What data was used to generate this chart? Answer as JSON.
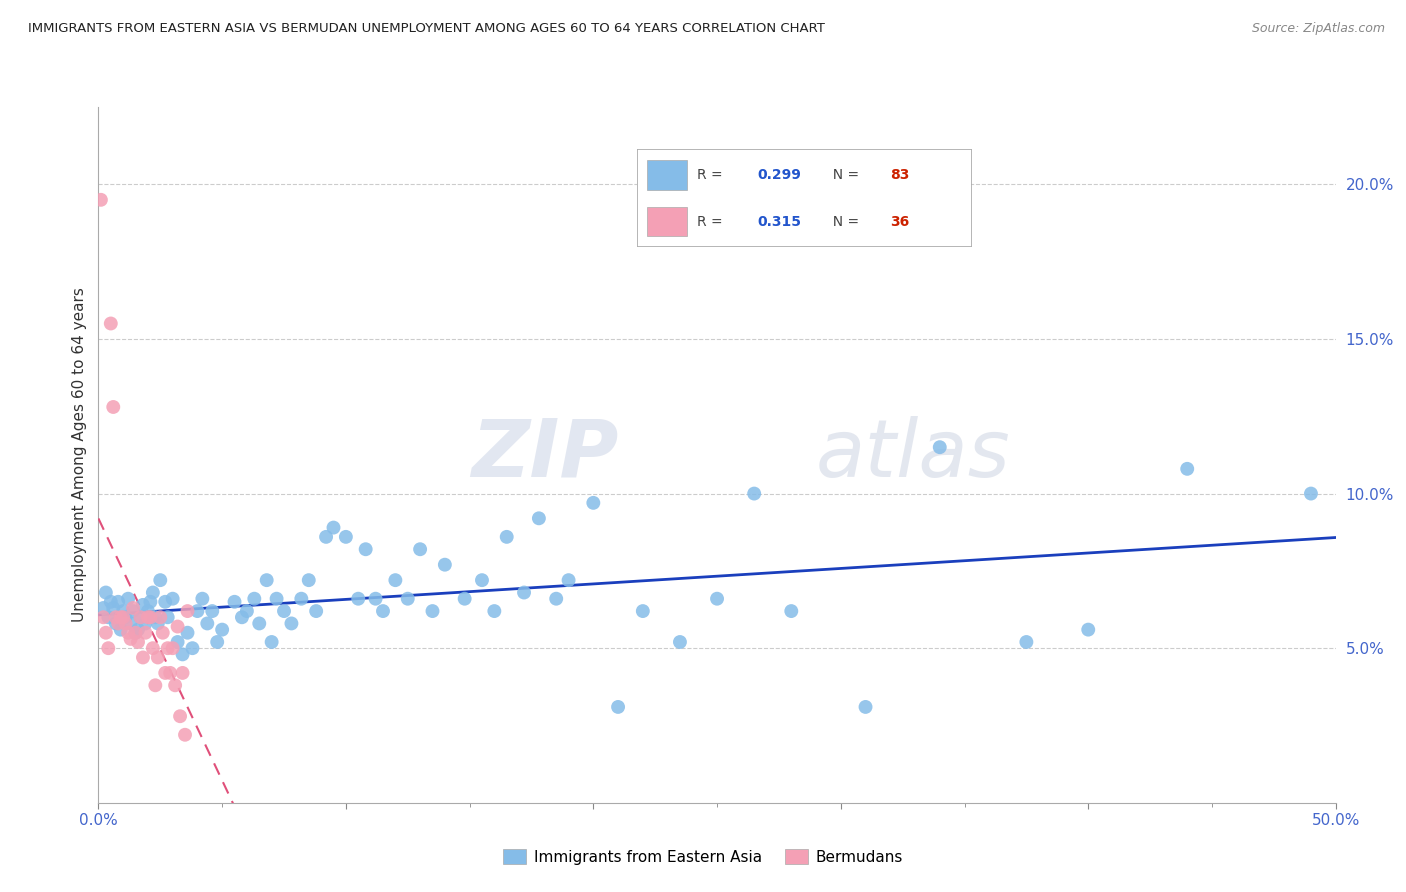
{
  "title": "IMMIGRANTS FROM EASTERN ASIA VS BERMUDAN UNEMPLOYMENT AMONG AGES 60 TO 64 YEARS CORRELATION CHART",
  "source": "Source: ZipAtlas.com",
  "ylabel": "Unemployment Among Ages 60 to 64 years",
  "xlim": [
    0.0,
    0.5
  ],
  "ylim": [
    0.0,
    0.225
  ],
  "xticks_major": [
    0.0,
    0.1,
    0.2,
    0.3,
    0.4,
    0.5
  ],
  "xticks_minor": [
    0.05,
    0.15,
    0.25,
    0.35,
    0.45
  ],
  "xticklabels": [
    "0.0%",
    "",
    "",
    "",
    "",
    "50.0%"
  ],
  "yticks_right": [
    0.05,
    0.1,
    0.15,
    0.2
  ],
  "yticklabels_right": [
    "5.0%",
    "10.0%",
    "15.0%",
    "20.0%"
  ],
  "blue_color": "#85bce8",
  "pink_color": "#f4a0b5",
  "blue_line_color": "#1a3fbd",
  "pink_line_color": "#e0507a",
  "watermark_zip": "ZIP",
  "watermark_atlas": "atlas",
  "legend_R_blue": "0.299",
  "legend_N_blue": "83",
  "legend_R_pink": "0.315",
  "legend_N_pink": "36",
  "blue_x": [
    0.002,
    0.003,
    0.004,
    0.005,
    0.006,
    0.007,
    0.008,
    0.009,
    0.01,
    0.011,
    0.012,
    0.013,
    0.014,
    0.015,
    0.016,
    0.017,
    0.018,
    0.019,
    0.02,
    0.021,
    0.022,
    0.023,
    0.024,
    0.025,
    0.027,
    0.028,
    0.03,
    0.032,
    0.034,
    0.036,
    0.038,
    0.04,
    0.042,
    0.044,
    0.046,
    0.048,
    0.05,
    0.055,
    0.058,
    0.06,
    0.063,
    0.065,
    0.068,
    0.07,
    0.072,
    0.075,
    0.078,
    0.082,
    0.085,
    0.088,
    0.092,
    0.095,
    0.1,
    0.105,
    0.108,
    0.112,
    0.115,
    0.12,
    0.125,
    0.13,
    0.135,
    0.14,
    0.148,
    0.155,
    0.16,
    0.165,
    0.172,
    0.178,
    0.185,
    0.19,
    0.2,
    0.21,
    0.22,
    0.235,
    0.25,
    0.265,
    0.28,
    0.31,
    0.34,
    0.375,
    0.4,
    0.44,
    0.49
  ],
  "blue_y": [
    0.063,
    0.068,
    0.06,
    0.065,
    0.063,
    0.058,
    0.065,
    0.056,
    0.062,
    0.06,
    0.066,
    0.058,
    0.062,
    0.055,
    0.056,
    0.06,
    0.064,
    0.058,
    0.062,
    0.065,
    0.068,
    0.06,
    0.058,
    0.072,
    0.065,
    0.06,
    0.066,
    0.052,
    0.048,
    0.055,
    0.05,
    0.062,
    0.066,
    0.058,
    0.062,
    0.052,
    0.056,
    0.065,
    0.06,
    0.062,
    0.066,
    0.058,
    0.072,
    0.052,
    0.066,
    0.062,
    0.058,
    0.066,
    0.072,
    0.062,
    0.086,
    0.089,
    0.086,
    0.066,
    0.082,
    0.066,
    0.062,
    0.072,
    0.066,
    0.082,
    0.062,
    0.077,
    0.066,
    0.072,
    0.062,
    0.086,
    0.068,
    0.092,
    0.066,
    0.072,
    0.097,
    0.031,
    0.062,
    0.052,
    0.066,
    0.1,
    0.062,
    0.031,
    0.115,
    0.052,
    0.056,
    0.108,
    0.1
  ],
  "pink_x": [
    0.001,
    0.002,
    0.003,
    0.004,
    0.005,
    0.006,
    0.007,
    0.008,
    0.009,
    0.01,
    0.011,
    0.012,
    0.013,
    0.014,
    0.015,
    0.016,
    0.017,
    0.018,
    0.019,
    0.02,
    0.021,
    0.022,
    0.023,
    0.024,
    0.025,
    0.026,
    0.027,
    0.028,
    0.029,
    0.03,
    0.031,
    0.032,
    0.033,
    0.034,
    0.035,
    0.036
  ],
  "pink_y": [
    0.195,
    0.06,
    0.055,
    0.05,
    0.155,
    0.128,
    0.06,
    0.058,
    0.06,
    0.06,
    0.058,
    0.055,
    0.053,
    0.063,
    0.055,
    0.052,
    0.06,
    0.047,
    0.055,
    0.06,
    0.06,
    0.05,
    0.038,
    0.047,
    0.06,
    0.055,
    0.042,
    0.05,
    0.042,
    0.05,
    0.038,
    0.057,
    0.028,
    0.042,
    0.022,
    0.062
  ],
  "pink_trendline_x": [
    0.0,
    0.22
  ],
  "blue_trendline_x": [
    0.0,
    0.5
  ]
}
